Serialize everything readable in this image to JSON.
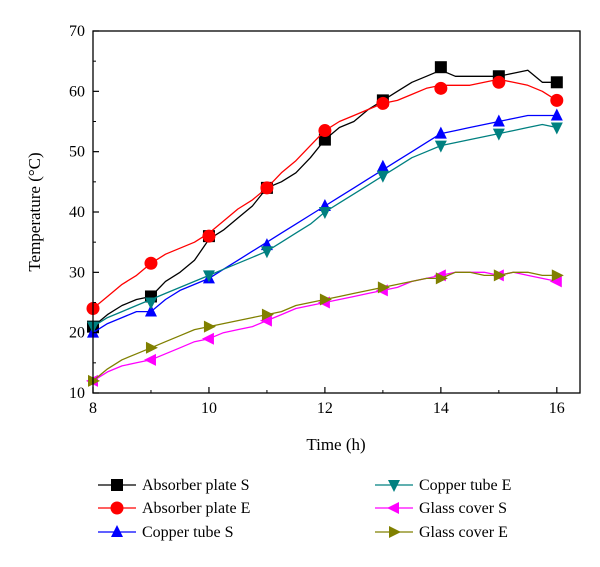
{
  "chart_data": {
    "type": "line",
    "title": "",
    "xlabel": "Time (h)",
    "ylabel": "Temperature (°C)",
    "xlim": [
      8,
      16.4
    ],
    "ylim": [
      10,
      70
    ],
    "xticks": [
      8,
      10,
      12,
      14,
      16
    ],
    "yticks": [
      10,
      20,
      30,
      40,
      50,
      60,
      70
    ],
    "grid": false,
    "legend": "bottom, two columns",
    "series": [
      {
        "name": "Absorber plate S",
        "color": "#000000",
        "marker": "square",
        "x": [
          8,
          8.25,
          8.5,
          8.75,
          9,
          9.25,
          9.5,
          9.75,
          10,
          10.25,
          10.5,
          10.75,
          11,
          11.25,
          11.5,
          11.75,
          12,
          12.25,
          12.5,
          12.75,
          13,
          13.25,
          13.5,
          13.75,
          14,
          14.25,
          14.5,
          14.75,
          15,
          15.25,
          15.5,
          15.75,
          16
        ],
        "y": [
          21,
          23,
          24.5,
          25.5,
          26,
          28.5,
          30,
          32,
          35.5,
          37,
          39,
          41,
          44,
          45,
          46.5,
          49,
          52,
          54,
          55,
          57,
          58.5,
          60,
          61.5,
          62.5,
          63.5,
          62.5,
          62.5,
          62.5,
          62.5,
          63,
          63.5,
          61.5,
          61.5
        ],
        "marker_x": [
          8,
          9,
          10,
          11,
          12,
          13,
          14,
          15,
          16
        ],
        "marker_y": [
          21,
          26,
          36,
          44,
          52,
          58.5,
          64,
          62.5,
          61.5
        ]
      },
      {
        "name": "Absorber plate E",
        "color": "#ff0000",
        "marker": "circle",
        "x": [
          8,
          8.25,
          8.5,
          8.75,
          9,
          9.25,
          9.5,
          9.75,
          10,
          10.25,
          10.5,
          10.75,
          11,
          11.25,
          11.5,
          11.75,
          12,
          12.25,
          12.5,
          12.75,
          13,
          13.25,
          13.5,
          13.75,
          14,
          14.25,
          14.5,
          14.75,
          15,
          15.25,
          15.5,
          15.75,
          16
        ],
        "y": [
          24,
          26,
          28,
          29.5,
          31.5,
          33,
          34,
          35,
          36.5,
          38.5,
          40.5,
          42,
          44,
          46.5,
          48.5,
          51,
          53.5,
          55,
          56,
          57,
          58,
          58.5,
          59.5,
          60.5,
          61,
          61,
          61,
          61.5,
          62,
          61.5,
          61,
          60,
          58.5
        ],
        "marker_x": [
          8,
          9,
          10,
          11,
          12,
          13,
          14,
          15,
          16
        ],
        "marker_y": [
          24,
          31.5,
          36,
          44,
          53.5,
          58,
          60.5,
          61.5,
          58.5
        ]
      },
      {
        "name": "Copper tube S",
        "color": "#0000ff",
        "marker": "triangle-up",
        "x": [
          8,
          8.25,
          8.5,
          8.75,
          9,
          9.25,
          9.5,
          9.75,
          10,
          10.25,
          10.5,
          10.75,
          11,
          11.25,
          11.5,
          11.75,
          12,
          12.25,
          12.5,
          12.75,
          13,
          13.25,
          13.5,
          13.75,
          14,
          14.25,
          14.5,
          14.75,
          15,
          15.25,
          15.5,
          15.75,
          16
        ],
        "y": [
          20,
          21.5,
          22.5,
          23.5,
          23.5,
          25.5,
          27,
          28,
          29,
          30.5,
          32,
          33.5,
          35,
          36.5,
          38,
          39.5,
          41,
          42.5,
          44,
          45.5,
          47,
          48.5,
          50,
          51.5,
          53,
          53.5,
          54,
          54.5,
          55,
          55.5,
          56,
          56,
          56
        ],
        "marker_x": [
          8,
          9,
          10,
          11,
          12,
          13,
          14,
          15,
          16
        ],
        "marker_y": [
          20,
          23.5,
          29,
          34.5,
          41,
          47.5,
          53,
          55,
          56
        ]
      },
      {
        "name": "Copper tube E",
        "color": "#008080",
        "marker": "triangle-down",
        "x": [
          8,
          8.25,
          8.5,
          8.75,
          9,
          9.25,
          9.5,
          9.75,
          10,
          10.25,
          10.5,
          10.75,
          11,
          11.25,
          11.5,
          11.75,
          12,
          12.25,
          12.5,
          12.75,
          13,
          13.25,
          13.5,
          13.75,
          14,
          14.25,
          14.5,
          14.75,
          15,
          15.25,
          15.5,
          15.75,
          16
        ],
        "y": [
          21,
          22.5,
          23.5,
          24.5,
          25.5,
          26.5,
          27.5,
          28.5,
          29.5,
          30.5,
          31.5,
          32.5,
          33.5,
          35,
          36.5,
          38,
          40,
          41.5,
          43,
          44.5,
          46,
          47.5,
          49,
          50,
          51,
          51.5,
          52,
          52.5,
          53,
          53.5,
          54,
          54.5,
          54
        ],
        "marker_x": [
          8,
          9,
          10,
          11,
          12,
          13,
          14,
          15,
          16
        ],
        "marker_y": [
          21,
          25,
          29.5,
          33.5,
          40,
          46,
          51,
          53,
          54
        ]
      },
      {
        "name": "Glass cover S",
        "color": "#ff00ff",
        "marker": "triangle-left",
        "x": [
          8,
          8.25,
          8.5,
          8.75,
          9,
          9.25,
          9.5,
          9.75,
          10,
          10.25,
          10.5,
          10.75,
          11,
          11.25,
          11.5,
          11.75,
          12,
          12.25,
          12.5,
          12.75,
          13,
          13.25,
          13.5,
          13.75,
          14,
          14.25,
          14.5,
          14.75,
          15,
          15.25,
          15.5,
          15.75,
          16
        ],
        "y": [
          12,
          13.5,
          14.5,
          15,
          15.5,
          16.5,
          17.5,
          18.5,
          19,
          20,
          20.5,
          21,
          22,
          23,
          24,
          24.5,
          25,
          25.5,
          26,
          26.5,
          27,
          27.5,
          28.5,
          29,
          29.5,
          30,
          30,
          30,
          29.5,
          30,
          29.5,
          29,
          28.5
        ],
        "marker_x": [
          8,
          9,
          10,
          11,
          12,
          13,
          14,
          15,
          16
        ],
        "marker_y": [
          12,
          15.5,
          19,
          22,
          25,
          27,
          29.5,
          29.5,
          28.5
        ]
      },
      {
        "name": "Glass cover E",
        "color": "#808000",
        "marker": "triangle-right",
        "x": [
          8,
          8.25,
          8.5,
          8.75,
          9,
          9.25,
          9.5,
          9.75,
          10,
          10.25,
          10.5,
          10.75,
          11,
          11.25,
          11.5,
          11.75,
          12,
          12.25,
          12.5,
          12.75,
          13,
          13.25,
          13.5,
          13.75,
          14,
          14.25,
          14.5,
          14.75,
          15,
          15.25,
          15.5,
          15.75,
          16
        ],
        "y": [
          12,
          14,
          15.5,
          16.5,
          17.5,
          18.5,
          19.5,
          20.5,
          21,
          21.5,
          22,
          22.5,
          23,
          23.5,
          24.5,
          25,
          25.5,
          26,
          26.5,
          27,
          27.5,
          28,
          28.5,
          29,
          29,
          30,
          30,
          29.5,
          29.5,
          30,
          30,
          29.5,
          29.5
        ],
        "marker_x": [
          8,
          9,
          10,
          11,
          12,
          13,
          14,
          15,
          16
        ],
        "marker_y": [
          12,
          17.5,
          21,
          23,
          25.5,
          27.5,
          29,
          29.5,
          29.5
        ]
      }
    ]
  }
}
